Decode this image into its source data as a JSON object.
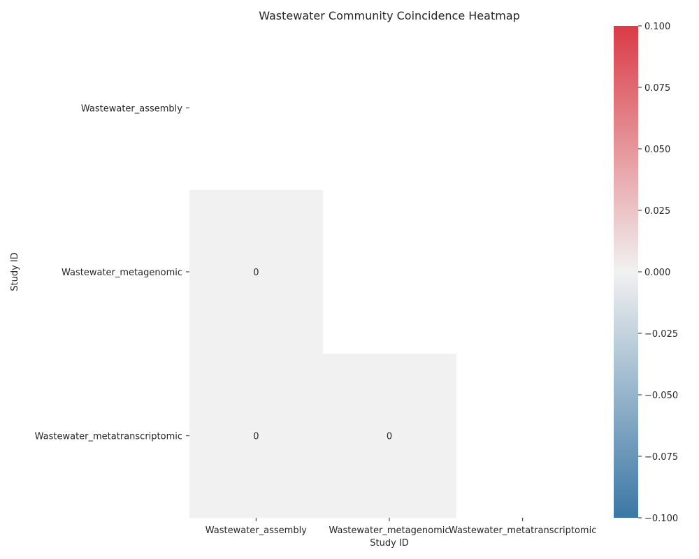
{
  "chart_data": {
    "type": "heatmap",
    "title": "Wastewater Community Coincidence Heatmap",
    "xlabel": "Study ID",
    "ylabel": "Study ID",
    "x_categories": [
      "Wastewater_assembly",
      "Wastewater_metagenomic",
      "Wastewater_metatranscriptomic"
    ],
    "y_categories": [
      "Wastewater_assembly",
      "Wastewater_metagenomic",
      "Wastewater_metatranscriptomic"
    ],
    "mask": "upper-triangle-and-diagonal",
    "cells": [
      {
        "row": 1,
        "col": 0,
        "value": 0,
        "label": "0"
      },
      {
        "row": 2,
        "col": 0,
        "value": 0,
        "label": "0"
      },
      {
        "row": 2,
        "col": 1,
        "value": 0,
        "label": "0"
      }
    ],
    "colorbar": {
      "vmin": -0.1,
      "vmax": 0.1,
      "ticks": [
        "0.100",
        "0.075",
        "0.050",
        "0.025",
        "0.000",
        "−0.025",
        "−0.050",
        "−0.075",
        "−0.100"
      ],
      "colors": {
        "low": "#3b77a5",
        "mid": "#f1f1f1",
        "high": "#da3b46"
      }
    }
  }
}
